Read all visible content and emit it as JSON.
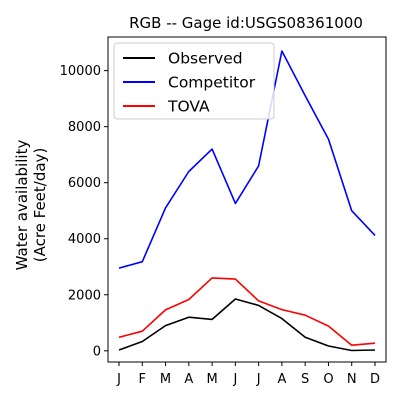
{
  "chart_data": {
    "type": "line",
    "title": "RGB -- Gage id:USGS08361000",
    "ylabel_line1": "Water availability",
    "ylabel_line2": "(Acre Feet/day)",
    "xlabel": "",
    "categories": [
      "J",
      "F",
      "M",
      "A",
      "M",
      "J",
      "J",
      "A",
      "S",
      "O",
      "N",
      "D"
    ],
    "ylim": [
      -400,
      11200
    ],
    "yticks": [
      0,
      2000,
      4000,
      6000,
      8000,
      10000
    ],
    "ytick_labels": [
      "0",
      "2000",
      "4000",
      "6000",
      "8000",
      "10000"
    ],
    "grid": false,
    "legend_position": "top-left",
    "series": [
      {
        "name": "Observed",
        "color": "#000000",
        "values": [
          30,
          330,
          900,
          1200,
          1120,
          1850,
          1620,
          1150,
          480,
          170,
          10,
          30
        ]
      },
      {
        "name": "Competitor",
        "color": "#0000ff",
        "values": [
          2950,
          3180,
          5100,
          6400,
          7200,
          5260,
          6600,
          10700,
          9100,
          7550,
          5000,
          4120
        ]
      },
      {
        "name": "TOVA",
        "color": "#ff0000",
        "values": [
          480,
          700,
          1460,
          1830,
          2600,
          2560,
          1780,
          1470,
          1270,
          880,
          200,
          270
        ]
      }
    ]
  }
}
